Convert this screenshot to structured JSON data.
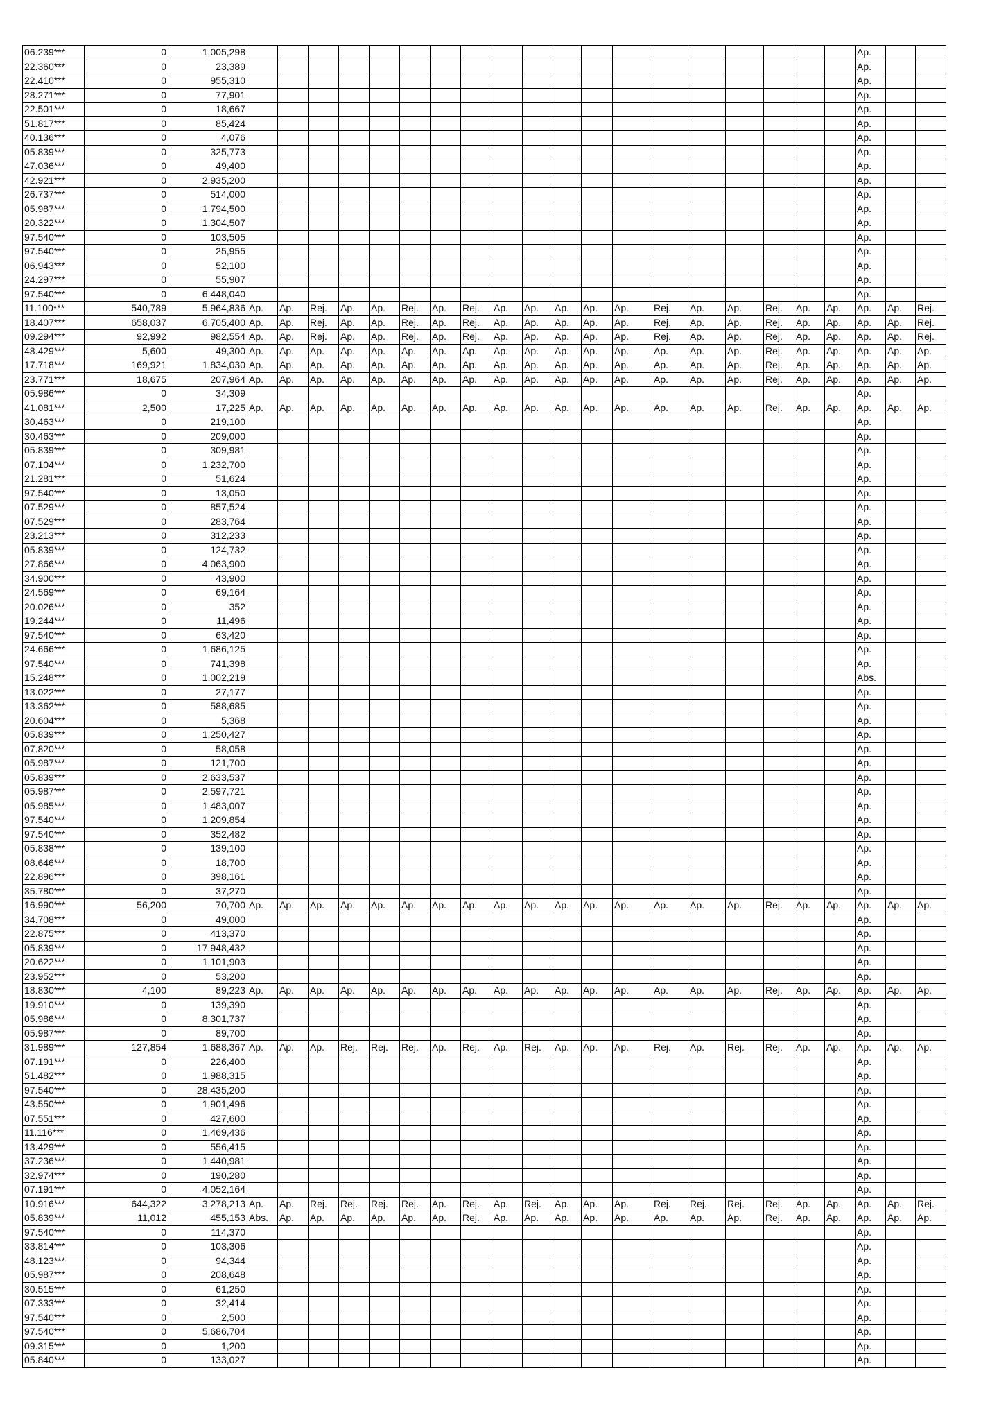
{
  "rows": [
    {
      "id": "06.239***",
      "c1": "0",
      "c2": "1,005,298",
      "s": "E"
    },
    {
      "id": "22.360***",
      "c1": "0",
      "c2": "23,389",
      "s": "E"
    },
    {
      "id": "22.410***",
      "c1": "0",
      "c2": "955,310",
      "s": "E"
    },
    {
      "id": "28.271***",
      "c1": "0",
      "c2": "77,901",
      "s": "E"
    },
    {
      "id": "22.501***",
      "c1": "0",
      "c2": "18,667",
      "s": "E"
    },
    {
      "id": "51.817***",
      "c1": "0",
      "c2": "85,424",
      "s": "E"
    },
    {
      "id": "40.136***",
      "c1": "0",
      "c2": "4,076",
      "s": "E"
    },
    {
      "id": "05.839***",
      "c1": "0",
      "c2": "325,773",
      "s": "E"
    },
    {
      "id": "47.036***",
      "c1": "0",
      "c2": "49,400",
      "s": "E"
    },
    {
      "id": "42.921***",
      "c1": "0",
      "c2": "2,935,200",
      "s": "E"
    },
    {
      "id": "26.737***",
      "c1": "0",
      "c2": "514,000",
      "s": "E"
    },
    {
      "id": "05.987***",
      "c1": "0",
      "c2": "1,794,500",
      "s": "E"
    },
    {
      "id": "20.322***",
      "c1": "0",
      "c2": "1,304,507",
      "s": "E"
    },
    {
      "id": "97.540***",
      "c1": "0",
      "c2": "103,505",
      "s": "E"
    },
    {
      "id": "97.540***",
      "c1": "0",
      "c2": "25,955",
      "s": "E"
    },
    {
      "id": "06.943***",
      "c1": "0",
      "c2": "52,100",
      "s": "E"
    },
    {
      "id": "24.297***",
      "c1": "0",
      "c2": "55,907",
      "s": "E"
    },
    {
      "id": "97.540***",
      "c1": "0",
      "c2": "6,448,040",
      "s": "E"
    },
    {
      "id": "11.100***",
      "c1": "540,789",
      "c2": "5,964,836",
      "s": "A"
    },
    {
      "id": "18.407***",
      "c1": "658,037",
      "c2": "6,705,400",
      "s": "A"
    },
    {
      "id": "09.294***",
      "c1": "92,992",
      "c2": "982,554",
      "s": "A"
    },
    {
      "id": "48.429***",
      "c1": "5,600",
      "c2": "49,300",
      "s": "B"
    },
    {
      "id": "17.718***",
      "c1": "169,921",
      "c2": "1,834,030",
      "s": "B"
    },
    {
      "id": "23.771***",
      "c1": "18,675",
      "c2": "207,964",
      "s": "B"
    },
    {
      "id": "05.986***",
      "c1": "0",
      "c2": "34,309",
      "s": "E"
    },
    {
      "id": "41.081***",
      "c1": "2,500",
      "c2": "17,225",
      "s": "B"
    },
    {
      "id": "30.463***",
      "c1": "0",
      "c2": "219,100",
      "s": "E"
    },
    {
      "id": "30.463***",
      "c1": "0",
      "c2": "209,000",
      "s": "E"
    },
    {
      "id": "05.839***",
      "c1": "0",
      "c2": "309,981",
      "s": "E"
    },
    {
      "id": "07.104***",
      "c1": "0",
      "c2": "1,232,700",
      "s": "E"
    },
    {
      "id": "21.281***",
      "c1": "0",
      "c2": "51,624",
      "s": "E"
    },
    {
      "id": "97.540***",
      "c1": "0",
      "c2": "13,050",
      "s": "E"
    },
    {
      "id": "07.529***",
      "c1": "0",
      "c2": "857,524",
      "s": "E"
    },
    {
      "id": "07.529***",
      "c1": "0",
      "c2": "283,764",
      "s": "E"
    },
    {
      "id": "23.213***",
      "c1": "0",
      "c2": "312,233",
      "s": "E"
    },
    {
      "id": "05.839***",
      "c1": "0",
      "c2": "124,732",
      "s": "E"
    },
    {
      "id": "27.866***",
      "c1": "0",
      "c2": "4,063,900",
      "s": "E"
    },
    {
      "id": "34.900***",
      "c1": "0",
      "c2": "43,900",
      "s": "E"
    },
    {
      "id": "24.569***",
      "c1": "0",
      "c2": "69,164",
      "s": "E"
    },
    {
      "id": "20.026***",
      "c1": "0",
      "c2": "352",
      "s": "E"
    },
    {
      "id": "19.244***",
      "c1": "0",
      "c2": "11,496",
      "s": "E"
    },
    {
      "id": "97.540***",
      "c1": "0",
      "c2": "63,420",
      "s": "E"
    },
    {
      "id": "24.666***",
      "c1": "0",
      "c2": "1,686,125",
      "s": "E"
    },
    {
      "id": "97.540***",
      "c1": "0",
      "c2": "741,398",
      "s": "E"
    },
    {
      "id": "15.248***",
      "c1": "0",
      "c2": "1,002,219",
      "s": [
        "",
        "",
        "",
        "",
        "",
        "",
        "",
        "",
        "",
        "",
        "",
        "",
        "",
        "",
        "",
        "",
        "",
        "",
        "",
        "Abs.",
        "",
        ""
      ]
    },
    {
      "id": "13.022***",
      "c1": "0",
      "c2": "27,177",
      "s": "E"
    },
    {
      "id": "13.362***",
      "c1": "0",
      "c2": "588,685",
      "s": "E"
    },
    {
      "id": "20.604***",
      "c1": "0",
      "c2": "5,368",
      "s": "E"
    },
    {
      "id": "05.839***",
      "c1": "0",
      "c2": "1,250,427",
      "s": "E"
    },
    {
      "id": "07.820***",
      "c1": "0",
      "c2": "58,058",
      "s": "E"
    },
    {
      "id": "05.987***",
      "c1": "0",
      "c2": "121,700",
      "s": "E"
    },
    {
      "id": "05.839***",
      "c1": "0",
      "c2": "2,633,537",
      "s": "E"
    },
    {
      "id": "05.987***",
      "c1": "0",
      "c2": "2,597,721",
      "s": "E"
    },
    {
      "id": "05.985***",
      "c1": "0",
      "c2": "1,483,007",
      "s": "E"
    },
    {
      "id": "97.540***",
      "c1": "0",
      "c2": "1,209,854",
      "s": "E"
    },
    {
      "id": "97.540***",
      "c1": "0",
      "c2": "352,482",
      "s": "E"
    },
    {
      "id": "05.838***",
      "c1": "0",
      "c2": "139,100",
      "s": "E"
    },
    {
      "id": "08.646***",
      "c1": "0",
      "c2": "18,700",
      "s": "E"
    },
    {
      "id": "22.896***",
      "c1": "0",
      "c2": "398,161",
      "s": "E"
    },
    {
      "id": "35.780***",
      "c1": "0",
      "c2": "37,270",
      "s": "E"
    },
    {
      "id": "16.990***",
      "c1": "56,200",
      "c2": "70,700",
      "s": "B"
    },
    {
      "id": "34.708***",
      "c1": "0",
      "c2": "49,000",
      "s": "E"
    },
    {
      "id": "22.875***",
      "c1": "0",
      "c2": "413,370",
      "s": "E"
    },
    {
      "id": "05.839***",
      "c1": "0",
      "c2": "17,948,432",
      "s": "E"
    },
    {
      "id": "20.622***",
      "c1": "0",
      "c2": "1,101,903",
      "s": "E"
    },
    {
      "id": "23.952***",
      "c1": "0",
      "c2": "53,200",
      "s": "E"
    },
    {
      "id": "18.830***",
      "c1": "4,100",
      "c2": "89,223",
      "s": "B"
    },
    {
      "id": "19.910***",
      "c1": "0",
      "c2": "139,390",
      "s": "E"
    },
    {
      "id": "05.986***",
      "c1": "0",
      "c2": "8,301,737",
      "s": "E"
    },
    {
      "id": "05.987***",
      "c1": "0",
      "c2": "89,700",
      "s": "E"
    },
    {
      "id": "31.989***",
      "c1": "127,854",
      "c2": "1,688,367",
      "s": [
        "Ap.",
        "Ap.",
        "Ap.",
        "Rej.",
        "Rej.",
        "Rej.",
        "Ap.",
        "Rej.",
        "Ap.",
        "Rej.",
        "Ap.",
        "Ap.",
        "Ap.",
        "Rej.",
        "Ap.",
        "Rej.",
        "Rej.",
        "Ap.",
        "Ap.",
        "Ap.",
        "Ap.",
        "Ap."
      ]
    },
    {
      "id": "07.191***",
      "c1": "0",
      "c2": "226,400",
      "s": "E"
    },
    {
      "id": "51.482***",
      "c1": "0",
      "c2": "1,988,315",
      "s": "E"
    },
    {
      "id": "97.540***",
      "c1": "0",
      "c2": "28,435,200",
      "s": "E"
    },
    {
      "id": "43.550***",
      "c1": "0",
      "c2": "1,901,496",
      "s": "E"
    },
    {
      "id": "07.551***",
      "c1": "0",
      "c2": "427,600",
      "s": "E"
    },
    {
      "id": "11.116***",
      "c1": "0",
      "c2": "1,469,436",
      "s": "E"
    },
    {
      "id": "13.429***",
      "c1": "0",
      "c2": "556,415",
      "s": "E"
    },
    {
      "id": "37.236***",
      "c1": "0",
      "c2": "1,440,981",
      "s": "E"
    },
    {
      "id": "32.974***",
      "c1": "0",
      "c2": "190,280",
      "s": "E"
    },
    {
      "id": "07.191***",
      "c1": "0",
      "c2": "4,052,164",
      "s": "E"
    },
    {
      "id": "10.916***",
      "c1": "644,322",
      "c2": "3,278,213",
      "s": [
        "Ap.",
        "Ap.",
        "Rej.",
        "Rej.",
        "Rej.",
        "Rej.",
        "Ap.",
        "Rej.",
        "Ap.",
        "Rej.",
        "Ap.",
        "Ap.",
        "Ap.",
        "Rej.",
        "Rej.",
        "Rej.",
        "Rej.",
        "Ap.",
        "Ap.",
        "Ap.",
        "Ap.",
        "Rej."
      ]
    },
    {
      "id": "05.839***",
      "c1": "11,012",
      "c2": "455,153",
      "s": [
        "Abs.",
        "Ap.",
        "Ap.",
        "Ap.",
        "Ap.",
        "Ap.",
        "Ap.",
        "Rej.",
        "Ap.",
        "Ap.",
        "Ap.",
        "Ap.",
        "Ap.",
        "Ap.",
        "Ap.",
        "Ap.",
        "Rej.",
        "Ap.",
        "Ap.",
        "Ap.",
        "Ap.",
        "Ap."
      ]
    },
    {
      "id": "97.540***",
      "c1": "0",
      "c2": "114,370",
      "s": "E"
    },
    {
      "id": "33.814***",
      "c1": "0",
      "c2": "103,306",
      "s": "E"
    },
    {
      "id": "48.123***",
      "c1": "0",
      "c2": "94,344",
      "s": "E"
    },
    {
      "id": "05.987***",
      "c1": "0",
      "c2": "208,648",
      "s": "E"
    },
    {
      "id": "30.515***",
      "c1": "0",
      "c2": "61,250",
      "s": "E"
    },
    {
      "id": "07.333***",
      "c1": "0",
      "c2": "32,414",
      "s": "E"
    },
    {
      "id": "97.540***",
      "c1": "0",
      "c2": "2,500",
      "s": "E"
    },
    {
      "id": "97.540***",
      "c1": "0",
      "c2": "5,686,704",
      "s": "E"
    },
    {
      "id": "09.315***",
      "c1": "0",
      "c2": "1,200",
      "s": "E"
    },
    {
      "id": "05.840***",
      "c1": "0",
      "c2": "133,027",
      "s": "E"
    }
  ],
  "status_patterns": {
    "E": [
      "",
      "",
      "",
      "",
      "",
      "",
      "",
      "",
      "",
      "",
      "",
      "",
      "",
      "",
      "",
      "",
      "",
      "",
      "",
      "Ap.",
      "",
      ""
    ],
    "A": [
      "Ap.",
      "Ap.",
      "Rej.",
      "Ap.",
      "Ap.",
      "Rej.",
      "Ap.",
      "Rej.",
      "Ap.",
      "Ap.",
      "Ap.",
      "Ap.",
      "Ap.",
      "Rej.",
      "Ap.",
      "Ap.",
      "Rej.",
      "Ap.",
      "Ap.",
      "Ap.",
      "Ap.",
      "Rej."
    ],
    "B": [
      "Ap.",
      "Ap.",
      "Ap.",
      "Ap.",
      "Ap.",
      "Ap.",
      "Ap.",
      "Ap.",
      "Ap.",
      "Ap.",
      "Ap.",
      "Ap.",
      "Ap.",
      "Ap.",
      "Ap.",
      "Ap.",
      "Rej.",
      "Ap.",
      "Ap.",
      "Ap.",
      "Ap.",
      "Ap."
    ]
  }
}
